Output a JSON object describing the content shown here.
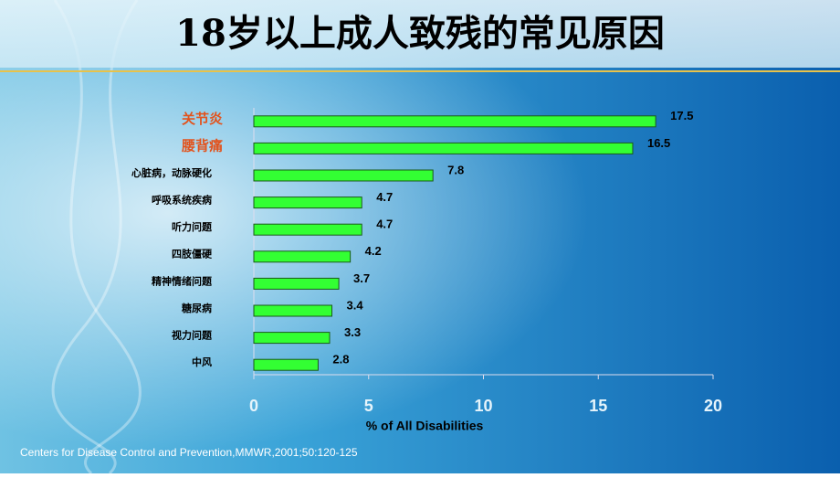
{
  "chart_data": {
    "type": "bar",
    "orientation": "horizontal",
    "title": "18岁以上成人致残的常见原因",
    "categories": [
      "关节炎",
      "腰背痛",
      "心脏病，动脉硬化",
      "呼吸系统疾病",
      "听力问题",
      "四肢僵硬",
      "精神情绪问题",
      "糖尿病",
      "视力问题",
      "中风"
    ],
    "category_colors": [
      "#e2531d",
      "#e2531d",
      "#000000",
      "#000000",
      "#000000",
      "#000000",
      "#000000",
      "#000000",
      "#000000",
      "#000000"
    ],
    "values": [
      17.5,
      16.5,
      7.8,
      4.7,
      4.7,
      4.2,
      3.7,
      3.4,
      3.3,
      2.8
    ],
    "color": "#33ff33",
    "xlim": [
      0,
      20
    ],
    "xticks": [
      0,
      5,
      10,
      15,
      20
    ],
    "xlabel": "% of All Disabilities",
    "source": "Centers for Disease Control and Prevention,MMWR,2001;50:120-125"
  }
}
